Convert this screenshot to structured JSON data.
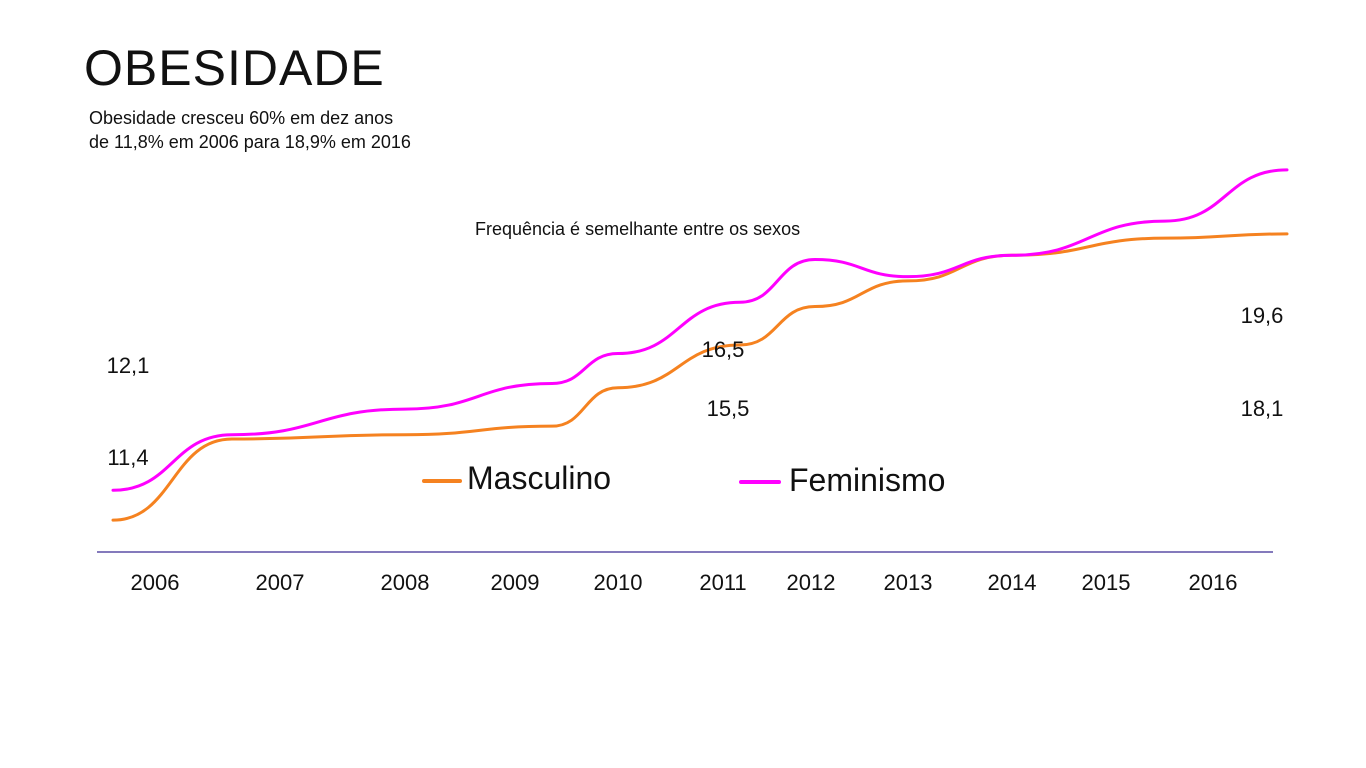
{
  "header": {
    "title": "OBESIDADE",
    "subtitle_lines": [
      "Obesidade cresceu 60% em dez anos",
      "de 11,8% em 2006 para 18,9% em 2016"
    ]
  },
  "chart_data": {
    "type": "line",
    "title": "Frequência é semelhante entre os sexos",
    "xlabel": "",
    "ylabel": "",
    "x": [
      "2006",
      "2007",
      "2008",
      "2009",
      "2010",
      "2011",
      "2012",
      "2013",
      "2014",
      "2015",
      "2016"
    ],
    "categories": [
      "2006",
      "2007",
      "2008",
      "2009",
      "2010",
      "2011",
      "2012",
      "2013",
      "2014",
      "2015",
      "2016"
    ],
    "ylim": [
      10,
      21
    ],
    "grid": false,
    "legend": "center",
    "series": [
      {
        "name": "Masculino",
        "color": "#F58220",
        "values": [
          11.4,
          13.3,
          13.4,
          13.6,
          14.5,
          15.5,
          16.4,
          17.0,
          17.6,
          18.0,
          18.1
        ],
        "labels": [
          {
            "index": 0,
            "text": "11,4"
          },
          {
            "index": 5,
            "text": "15,5"
          },
          {
            "index": 10,
            "text": "18,1"
          }
        ]
      },
      {
        "name": "Feminismo",
        "color": "#FF00FF",
        "values": [
          12.1,
          13.4,
          14.0,
          14.6,
          15.3,
          16.5,
          17.5,
          17.1,
          17.6,
          18.4,
          19.6
        ],
        "labels": [
          {
            "index": 0,
            "text": "12,1"
          },
          {
            "index": 5,
            "text": "16,5"
          },
          {
            "index": 10,
            "text": "19,6"
          }
        ]
      }
    ],
    "axis_color": "#5B4FA5"
  }
}
